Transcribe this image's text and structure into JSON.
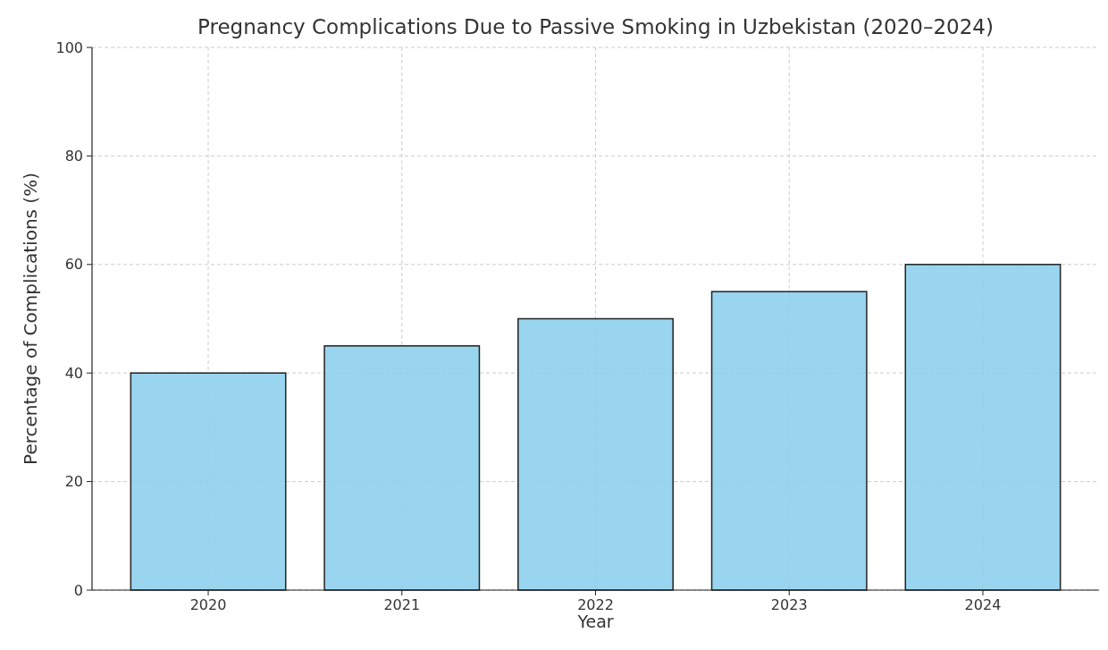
{
  "chart_data": {
    "type": "bar",
    "title": "Pregnancy Complications Due to Passive Smoking in Uzbekistan (2020–2024)",
    "xlabel": "Year",
    "ylabel": "Percentage of Complications (%)",
    "categories": [
      "2020",
      "2021",
      "2022",
      "2023",
      "2024"
    ],
    "values": [
      40,
      45,
      50,
      55,
      60
    ],
    "color": "#87ceeb",
    "ylim": [
      0,
      100
    ],
    "yticks": [
      0,
      20,
      40,
      60,
      80,
      100
    ],
    "grid": true
  }
}
